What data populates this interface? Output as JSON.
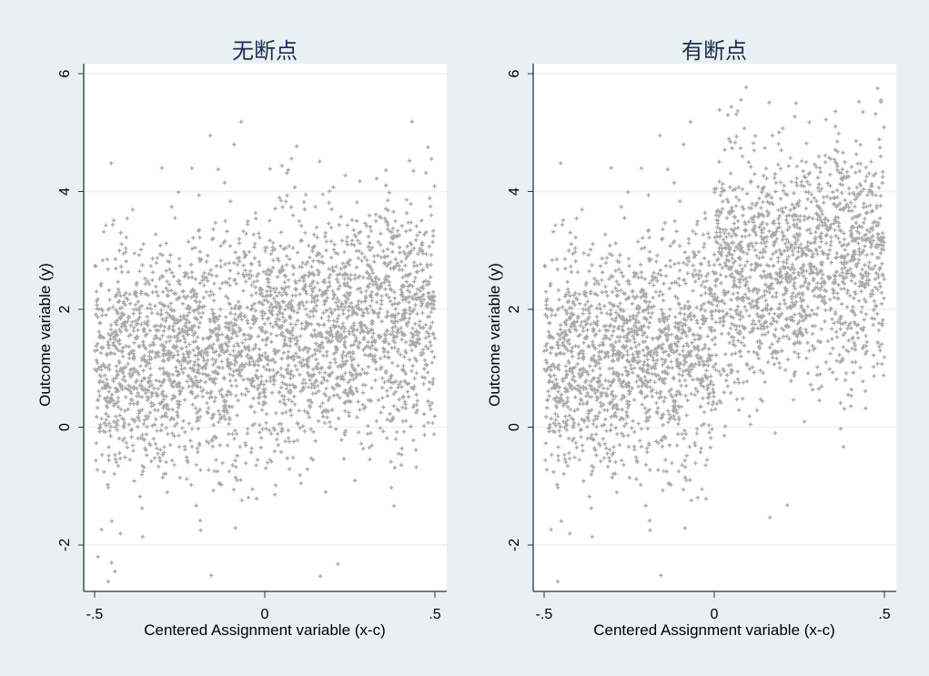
{
  "figure": {
    "background": "#e8f0f3",
    "plot_background": "#ffffff",
    "marker_color": "#a8a8a8",
    "gridline_color": "#eaf2f3",
    "title_color": "#1e2d4e"
  },
  "panels": [
    {
      "title": "无断点",
      "xlabel": "Centered Assignment variable (x-c)",
      "ylabel": "Outcome variable (y)",
      "xticks": [
        "-.5",
        "0",
        ".5"
      ],
      "yticks": [
        "-2",
        "0",
        "2",
        "4",
        "6"
      ]
    },
    {
      "title": "有断点",
      "xlabel": "Centered Assignment variable (x-c)",
      "ylabel": "Outcome variable (y)",
      "xticks": [
        "-.5",
        "0",
        ".5"
      ],
      "yticks": [
        "-2",
        "0",
        "2",
        "4",
        "6"
      ]
    }
  ],
  "chart_data": [
    {
      "type": "scatter",
      "title": "无断点",
      "xlabel": "Centered Assignment variable (x-c)",
      "ylabel": "Outcome variable (y)",
      "xlim": [
        -0.52,
        0.53
      ],
      "ylim": [
        -2.8,
        6.2
      ],
      "xticks": [
        -0.5,
        0,
        0.5
      ],
      "yticks": [
        -2,
        0,
        2,
        4,
        6
      ],
      "grid": "horizontal",
      "legend": "none",
      "marker": "plus",
      "n_points_approx": 3000,
      "description": "Uniform x in [-0.5,0.5]; y ≈ 1.5 + 1.0·x + noise (sd≈1); no discontinuity at 0",
      "model": {
        "intercept": 1.5,
        "slope": 1.0,
        "jump": 0.0,
        "noise_sd": 1.0
      },
      "notable_points": [
        {
          "x": -0.16,
          "y": 4.95
        },
        {
          "x": -0.09,
          "y": 4.8
        },
        {
          "x": -0.49,
          "y": -2.2
        },
        {
          "x": -0.46,
          "y": -2.62
        },
        {
          "x": -0.44,
          "y": -2.45
        },
        {
          "x": -0.45,
          "y": -2.3
        }
      ]
    },
    {
      "type": "scatter",
      "title": "有断点",
      "xlabel": "Centered Assignment variable (x-c)",
      "ylabel": "Outcome variable (y)",
      "xlim": [
        -0.52,
        0.53
      ],
      "ylim": [
        -2.8,
        6.2
      ],
      "xticks": [
        -0.5,
        0,
        0.5
      ],
      "yticks": [
        -2,
        0,
        2,
        4,
        6
      ],
      "grid": "horizontal",
      "legend": "none",
      "marker": "plus",
      "n_points_approx": 3000,
      "description": "Same left side as 无断点; for x>0 outcome shifts up by ≈1 (discontinuity at 0)",
      "model": {
        "intercept": 1.5,
        "slope": 1.0,
        "jump": 1.0,
        "noise_sd": 1.0
      },
      "notable_points": [
        {
          "x": -0.16,
          "y": 4.95
        },
        {
          "x": -0.09,
          "y": 4.8
        },
        {
          "x": 0.04,
          "y": 5.3
        },
        {
          "x": 0.24,
          "y": 5.5
        },
        {
          "x": 0.49,
          "y": 5.52
        },
        {
          "x": -0.46,
          "y": -2.62
        }
      ]
    }
  ]
}
